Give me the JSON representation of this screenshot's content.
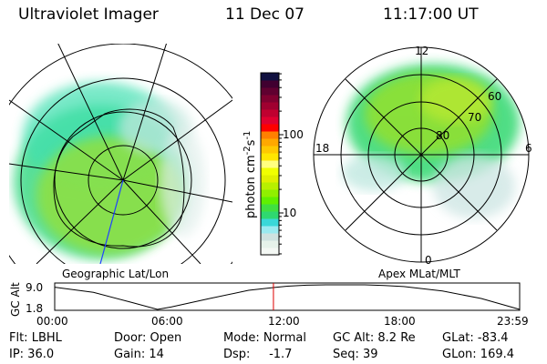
{
  "header": {
    "instrument": "Ultraviolet Imager",
    "date": "11 Dec 07",
    "time": "11:17:00 UT"
  },
  "left_map": {
    "label": "Geographic Lat/Lon"
  },
  "right_map": {
    "label": "Apex MLat/MLT",
    "mlt_labels": [
      "12",
      "6",
      "0",
      "18"
    ],
    "lat_labels": [
      "60",
      "70",
      "80"
    ]
  },
  "colorbar": {
    "unit_label": "photon cm",
    "exp1": "-2",
    "mid": "s",
    "exp2": "-1",
    "ticks": [
      "100",
      "10"
    ],
    "scale": "log",
    "colors": [
      "#f4f8f4",
      "#e6f2ea",
      "#cfe2e0",
      "#9aeaf0",
      "#3ad8d8",
      "#2fd870",
      "#40e040",
      "#60f000",
      "#90f000",
      "#b8f000",
      "#e0f000",
      "#f0ff00",
      "#ffff80",
      "#ffe600",
      "#ffc800",
      "#ffa800",
      "#ff8000",
      "#ff0000",
      "#e00030",
      "#c00030",
      "#a00030",
      "#800030",
      "#600030",
      "#400030",
      "#101040"
    ]
  },
  "chart_data": {
    "type": "line",
    "ylabel": "GC Alt",
    "yticks": [
      "9.0",
      "1.8"
    ],
    "ylim": [
      1.8,
      9.0
    ],
    "xticks": [
      "00:00",
      "06:00",
      "12:00",
      "18:00",
      "23:59"
    ],
    "xlim_hours": [
      0,
      23.983
    ],
    "x_hours": [
      0,
      2,
      4,
      5.3,
      6,
      8,
      10,
      11.28,
      12,
      13,
      14,
      15,
      16,
      17,
      18,
      20,
      22,
      23.983
    ],
    "y": [
      8.3,
      6.8,
      3.8,
      1.8,
      2.5,
      5.0,
      7.4,
      8.2,
      8.6,
      8.9,
      9.0,
      9.0,
      9.0,
      8.8,
      8.5,
      7.2,
      5.0,
      1.8
    ],
    "current_time_hours": 11.283,
    "current_marker_color": "#dd0000"
  },
  "status": {
    "flt": "Flt: LBHL",
    "ip": "IP: 36.0",
    "door": "Door: Open",
    "gain": "Gain: 14",
    "mode": "Mode: Normal",
    "dsp": "Dsp:     -1.7",
    "gcalt": "GC Alt: 8.2 Re",
    "seq": "Seq: 39",
    "glat": "GLat: -83.4",
    "glon": "GLon: 169.4"
  }
}
